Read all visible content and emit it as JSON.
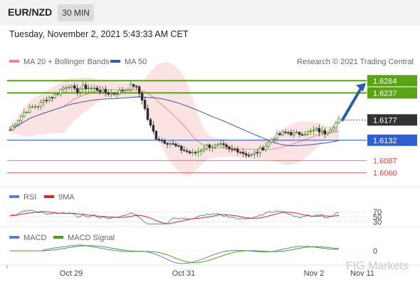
{
  "header": {
    "symbol": "EUR/NZD",
    "timeframe": "30 MIN",
    "datetime": "Tuesday, November 2, 2021 5:43:33 AM CET"
  },
  "legend": {
    "ma20": "MA 20 + Bollinger Bands",
    "ma50": "MA 50",
    "copyright": "Research © 2021 Trading Central",
    "rsi": "RSI",
    "rsi_ma": "9MA",
    "macd": "MACD",
    "macd_signal": "MACD Signal"
  },
  "watermark": "FIG Markets",
  "colors": {
    "resistance": "#5aa316",
    "support": "#2f5fd2",
    "projection": "#2a5fa8",
    "current": "#333333",
    "pivot": "#e04545",
    "candle_up": "#3a7d1f",
    "candle_down": "#2f2f2f",
    "bollinger_fill": "#fbdada",
    "ma20": "#f08a8a",
    "ma50": "#3b5ba9",
    "rsi": "#5b7fd9",
    "rsi_ma": "#d42a2a",
    "macd": "#5b7fd9",
    "macd_signal": "#4aa31a"
  },
  "chart_data": {
    "type": "candlestick",
    "y_range": [
      1.604,
      1.6285
    ],
    "x_labels": [
      "Oct 29",
      "Oct 31",
      "Nov 2",
      "Nov 11"
    ],
    "levels": [
      {
        "value": 1.6264,
        "label": "1.6264",
        "kind": "resistance"
      },
      {
        "value": 1.6237,
        "label": "1.6237",
        "kind": "resistance"
      },
      {
        "value": 1.6177,
        "label": "1.6177",
        "kind": "current"
      },
      {
        "value": 1.6132,
        "label": "1.6132",
        "kind": "support"
      },
      {
        "value": 1.6087,
        "label": "1.6087",
        "kind": "pivot"
      },
      {
        "value": 1.606,
        "label": "1.6060",
        "kind": "pivot"
      }
    ],
    "close_path": [
      1.6155,
      1.6175,
      1.6195,
      1.6205,
      1.621,
      1.6225,
      1.623,
      1.6245,
      1.6255,
      1.624,
      1.625,
      1.6248,
      1.6245,
      1.6238,
      1.6235,
      1.624,
      1.6247,
      1.6255,
      1.6228,
      1.617,
      1.6138,
      1.613,
      1.6125,
      1.6115,
      1.6108,
      1.6102,
      1.611,
      1.612,
      1.6118,
      1.612,
      1.611,
      1.6112,
      1.6103,
      1.6098,
      1.6108,
      1.612,
      1.6138,
      1.6145,
      1.615,
      1.6145,
      1.6148,
      1.615,
      1.6155,
      1.6148,
      1.616,
      1.6177
    ],
    "projection": {
      "from": 1.6177,
      "to": 1.6259
    },
    "rsi_levels": [
      70,
      50,
      30
    ],
    "macd_levels": [
      0
    ]
  }
}
